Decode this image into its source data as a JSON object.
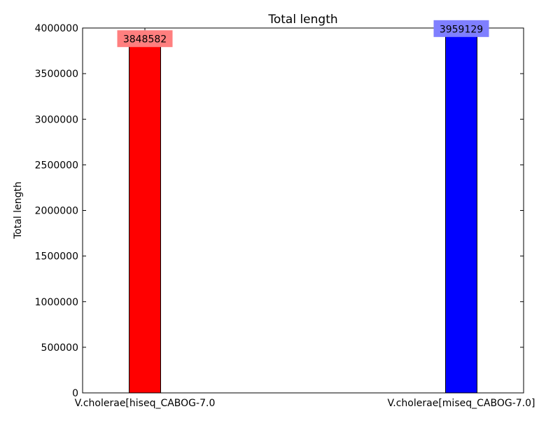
{
  "chart_data": {
    "type": "bar",
    "title": "Total length",
    "xlabel": "",
    "ylabel": "Total length",
    "categories": [
      "V.cholerae[hiseq_CABOG-7.0",
      "V.cholerae[miseq_CABOG-7.0]"
    ],
    "values": [
      3848582,
      3959129
    ],
    "data_labels": [
      "3848582",
      "3959129"
    ],
    "bar_colors": [
      "#ff0000",
      "#0000ff"
    ],
    "label_box_colors": [
      "#ff7f7f",
      "#7f7fff"
    ],
    "ylim": [
      0,
      4000000
    ],
    "yticks": [
      0,
      500000,
      1000000,
      1500000,
      2000000,
      2500000,
      3000000,
      3500000,
      4000000
    ],
    "ytick_labels": [
      "0",
      "500000",
      "1000000",
      "1500000",
      "2000000",
      "2500000",
      "3000000",
      "3500000",
      "4000000"
    ],
    "grid": false,
    "legend": "none"
  }
}
